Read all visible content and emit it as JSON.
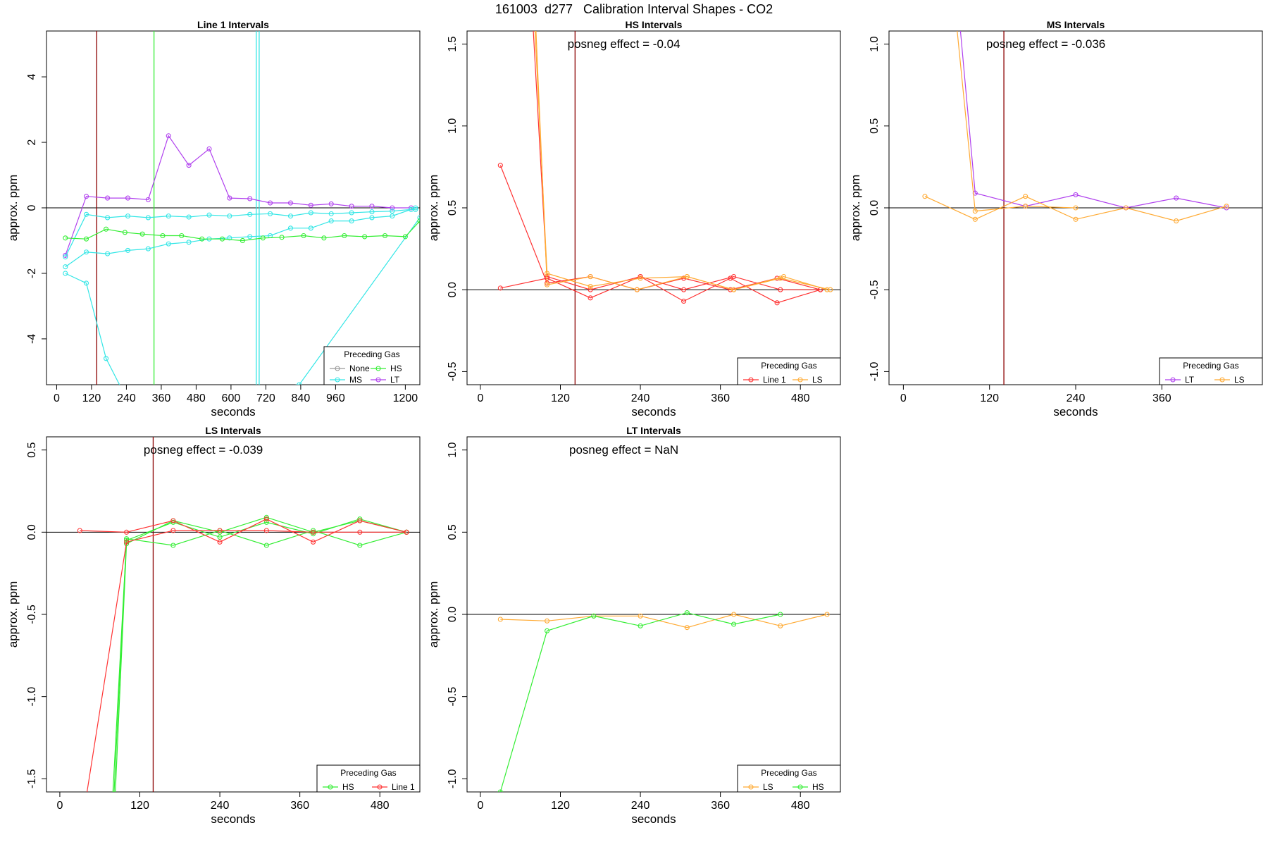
{
  "figure": {
    "title": "161003  d277   Calibration Interval Shapes - CO2"
  },
  "colors": {
    "Line 1": "#ff3333",
    "HS": "#33ee33",
    "MS": "#33e6e6",
    "LT": "#b040ee",
    "LS": "#ffaa33",
    "None": "#999999",
    "axis": "#000000"
  },
  "chart_data": [
    {
      "type": "line",
      "title": "Line 1 Intervals",
      "xlabel": "seconds",
      "ylabel": "approx. ppm",
      "xlim": [
        -35,
        1250
      ],
      "ylim": [
        -5.4,
        5.4
      ],
      "xticks": [
        0,
        120,
        240,
        360,
        480,
        600,
        720,
        840,
        960,
        1200
      ],
      "yticks": [
        -4,
        -2,
        0,
        2,
        4
      ],
      "grid": false,
      "hline": 0,
      "vlines": [
        {
          "x": 138,
          "color": "#8b0000"
        },
        {
          "x": 335,
          "color": "#33ee33"
        },
        {
          "x": 687,
          "color": "#33e6e6"
        },
        {
          "x": 697,
          "color": "#33e6e6"
        }
      ],
      "legend": {
        "title": "Preceding Gas",
        "position": "bottom-right",
        "entries": [
          "None",
          "HS",
          "MS",
          "LT"
        ]
      },
      "series": [
        {
          "name": "LT",
          "x": [
            30,
            102,
            175,
            245,
            315,
            385,
            455,
            525,
            595,
            665,
            735,
            805,
            875,
            945,
            1015,
            1085,
            1155,
            1220
          ],
          "y": [
            -1.45,
            0.35,
            0.3,
            0.3,
            0.25,
            2.2,
            1.3,
            1.8,
            0.3,
            0.28,
            0.15,
            0.15,
            0.08,
            0.12,
            0.05,
            0.05,
            0,
            0
          ]
        },
        {
          "name": "MS",
          "x": [
            30,
            102,
            175,
            245,
            315,
            385,
            455,
            525,
            595,
            665,
            735,
            805,
            875,
            945,
            1015,
            1085,
            1155,
            1220,
            1235
          ],
          "y": [
            -1.5,
            -0.2,
            -0.3,
            -0.25,
            -0.3,
            -0.25,
            -0.28,
            -0.22,
            -0.25,
            -0.2,
            -0.18,
            -0.25,
            -0.15,
            -0.18,
            -0.15,
            -0.12,
            -0.1,
            -0.05,
            -0.05
          ]
        },
        {
          "name": "MS",
          "x": [
            30,
            102,
            175,
            245,
            315,
            385,
            455,
            525,
            595,
            665,
            735,
            805,
            875,
            945,
            1015,
            1085,
            1155,
            1235
          ],
          "y": [
            -1.8,
            -1.35,
            -1.4,
            -1.3,
            -1.25,
            -1.1,
            -1.05,
            -0.95,
            -0.92,
            -0.88,
            -0.85,
            -0.62,
            -0.62,
            -0.4,
            -0.4,
            -0.3,
            -0.25,
            0
          ]
        },
        {
          "name": "MS",
          "x": [
            30,
            102,
            170,
            245,
            835,
            1250
          ],
          "y": [
            -2.0,
            -2.3,
            -4.6,
            -5.9,
            -5.4,
            -0.3
          ]
        },
        {
          "name": "HS",
          "x": [
            30,
            102,
            170,
            235,
            295,
            365,
            430,
            500,
            570,
            640,
            710,
            775,
            850,
            920,
            990,
            1060,
            1130,
            1200,
            1250
          ],
          "y": [
            -0.92,
            -0.95,
            -0.65,
            -0.75,
            -0.8,
            -0.85,
            -0.85,
            -0.95,
            -0.95,
            -1.0,
            -0.92,
            -0.9,
            -0.85,
            -0.92,
            -0.85,
            -0.88,
            -0.85,
            -0.88,
            -0.4
          ]
        }
      ]
    },
    {
      "type": "line",
      "title": "HS Intervals",
      "xlabel": "seconds",
      "ylabel": "approx. ppm",
      "annotation": "posneg effect = -0.04",
      "xlim": [
        -20,
        540
      ],
      "ylim": [
        -0.58,
        1.58
      ],
      "xticks": [
        0,
        120,
        240,
        360,
        480
      ],
      "yticks": [
        -0.5,
        0.0,
        0.5,
        1.0,
        1.5
      ],
      "grid": false,
      "hline": 0,
      "vlines": [
        {
          "x": 142,
          "color": "#8b0000"
        }
      ],
      "legend": {
        "title": "Preceding Gas",
        "position": "bottom-right",
        "entries": [
          "Line 1",
          "LS"
        ]
      },
      "series": [
        {
          "name": "Line 1",
          "x": [
            30,
            100,
            165,
            235,
            305,
            375,
            445,
            510
          ],
          "y": [
            0.76,
            0.04,
            0.08,
            0,
            0.07,
            0,
            0.07,
            0
          ]
        },
        {
          "name": "Line 1",
          "x": [
            30,
            100,
            165,
            240,
            305,
            375,
            445,
            510
          ],
          "y": [
            0.01,
            0.07,
            -0.05,
            0.08,
            -0.07,
            0.07,
            -0.08,
            0
          ]
        },
        {
          "name": "Line 1",
          "x": [
            75,
            100,
            165,
            240,
            305,
            380,
            450,
            510
          ],
          "y": [
            1.9,
            0.08,
            0,
            0.08,
            0,
            0.08,
            0,
            0
          ]
        },
        {
          "name": "LS",
          "x": [
            78,
            100,
            165,
            240,
            310,
            380,
            450,
            525
          ],
          "y": [
            1.9,
            0.1,
            0.02,
            0.07,
            0.08,
            0,
            0.07,
            0
          ]
        },
        {
          "name": "LS",
          "x": [
            80,
            100,
            165,
            235,
            310,
            380,
            455,
            520
          ],
          "y": [
            1.9,
            0.03,
            0.08,
            0,
            0.08,
            0,
            0.08,
            0
          ]
        }
      ]
    },
    {
      "type": "line",
      "title": "MS Intervals",
      "xlabel": "seconds",
      "ylabel": "approx. ppm",
      "annotation": "posneg effect = -0.036",
      "xlim": [
        -20,
        500
      ],
      "ylim": [
        -1.08,
        1.08
      ],
      "xticks": [
        0,
        120,
        240,
        360
      ],
      "yticks": [
        -1.0,
        -0.5,
        0.0,
        0.5,
        1.0
      ],
      "grid": false,
      "hline": 0,
      "vlines": [
        {
          "x": 140,
          "color": "#8b0000"
        }
      ],
      "legend": {
        "title": "Preceding Gas",
        "position": "bottom-right",
        "entries": [
          "LT",
          "LS"
        ]
      },
      "series": [
        {
          "name": "LT",
          "x": [
            75,
            100,
            170,
            240,
            310,
            380,
            450
          ],
          "y": [
            1.3,
            0.09,
            0.01,
            0.08,
            0,
            0.06,
            0
          ]
        },
        {
          "name": "LS",
          "x": [
            30,
            100,
            170,
            240,
            310,
            380,
            450
          ],
          "y": [
            0.07,
            -0.07,
            0.07,
            -0.07,
            0,
            -0.08,
            0.01
          ]
        },
        {
          "name": "LS",
          "x": [
            70,
            100,
            170,
            240
          ],
          "y": [
            1.3,
            -0.02,
            0.01,
            0
          ]
        }
      ]
    },
    {
      "type": "line",
      "title": "LS Intervals",
      "xlabel": "seconds",
      "ylabel": "approx. ppm",
      "annotation": "posneg effect = -0.039",
      "xlim": [
        -20,
        540
      ],
      "ylim": [
        -1.58,
        0.58
      ],
      "xticks": [
        0,
        120,
        240,
        360,
        480
      ],
      "yticks": [
        -1.5,
        -1.0,
        -0.5,
        0.0,
        0.5
      ],
      "grid": false,
      "hline": 0,
      "vlines": [
        {
          "x": 140,
          "color": "#8b0000"
        }
      ],
      "legend": {
        "title": "Preceding Gas",
        "position": "bottom-right",
        "entries": [
          "HS",
          "Line 1"
        ]
      },
      "series": [
        {
          "name": "HS",
          "x": [
            78,
            100,
            170,
            240,
            310,
            380,
            450,
            520
          ],
          "y": [
            -1.7,
            -0.05,
            0.06,
            -0.03,
            0.06,
            -0.01,
            0.08,
            0
          ]
        },
        {
          "name": "HS",
          "x": [
            80,
            100,
            170,
            240,
            310,
            380,
            450,
            520
          ],
          "y": [
            -1.7,
            -0.04,
            -0.08,
            0.01,
            -0.08,
            0.01,
            -0.08,
            0
          ]
        },
        {
          "name": "HS",
          "x": [
            82,
            100,
            170,
            240,
            310,
            380,
            450,
            520
          ],
          "y": [
            -1.7,
            -0.07,
            0.07,
            0,
            0.09,
            0,
            0.07,
            0
          ]
        },
        {
          "name": "Line 1",
          "x": [
            30,
            100,
            170,
            240,
            310,
            380,
            450,
            520
          ],
          "y": [
            0.01,
            0,
            0.07,
            -0.06,
            0.08,
            -0.06,
            0.07,
            0
          ]
        },
        {
          "name": "Line 1",
          "x": [
            40,
            100,
            170,
            240,
            310,
            380,
            450,
            520
          ],
          "y": [
            -1.6,
            -0.06,
            0.01,
            0.01,
            0.01,
            0,
            0,
            0
          ]
        }
      ]
    },
    {
      "type": "line",
      "title": "LT Intervals",
      "xlabel": "seconds",
      "ylabel": "approx. ppm",
      "annotation": "posneg effect = NaN",
      "xlim": [
        -20,
        540
      ],
      "ylim": [
        -1.08,
        1.08
      ],
      "xticks": [
        0,
        120,
        240,
        360,
        480
      ],
      "yticks": [
        -1.0,
        -0.5,
        0.0,
        0.5,
        1.0
      ],
      "grid": false,
      "hline": 0,
      "vlines": [],
      "legend": {
        "title": "Preceding Gas",
        "position": "bottom-right",
        "entries": [
          "LS",
          "HS"
        ]
      },
      "series": [
        {
          "name": "LS",
          "x": [
            30,
            100,
            170,
            240,
            310,
            380,
            450,
            520
          ],
          "y": [
            -0.03,
            -0.04,
            -0.01,
            -0.01,
            -0.08,
            0,
            -0.07,
            0
          ]
        },
        {
          "name": "HS",
          "x": [
            30,
            100,
            170,
            240,
            310,
            380,
            450
          ],
          "y": [
            -1.08,
            -0.1,
            -0.01,
            -0.07,
            0.01,
            -0.06,
            0
          ]
        }
      ]
    }
  ]
}
